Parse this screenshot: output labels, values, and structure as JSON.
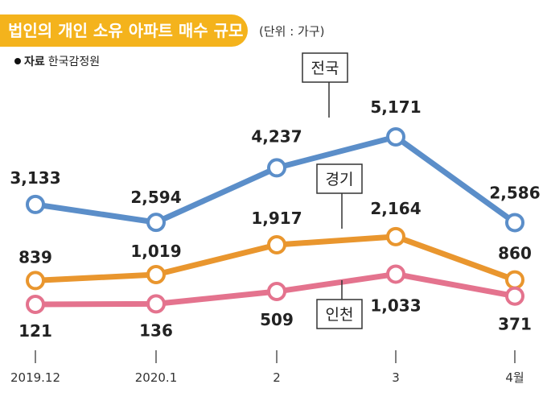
{
  "title": "법인의 개인 소유 아파트 매수 규모",
  "unit": "(단위 : 가구)",
  "source_label": "자료",
  "source": "한국감정원",
  "chart_data": {
    "type": "line",
    "categories": [
      "2019.12",
      "2020.1",
      "2",
      "3",
      "4월"
    ],
    "series": [
      {
        "name": "전국",
        "color": "#5b8ec9",
        "values": [
          3133,
          2594,
          4237,
          5171,
          2586
        ],
        "labels": [
          "3,133",
          "2,594",
          "4,237",
          "5,171",
          "2,586"
        ]
      },
      {
        "name": "경기",
        "color": "#e9962e",
        "values": [
          839,
          1019,
          1917,
          2164,
          860
        ],
        "labels": [
          "839",
          "1,019",
          "1,917",
          "2,164",
          "860"
        ]
      },
      {
        "name": "인천",
        "color": "#e4738e",
        "values": [
          121,
          136,
          509,
          1033,
          371
        ],
        "labels": [
          "121",
          "136",
          "509",
          "1,033",
          "371"
        ]
      }
    ],
    "grid": false
  }
}
